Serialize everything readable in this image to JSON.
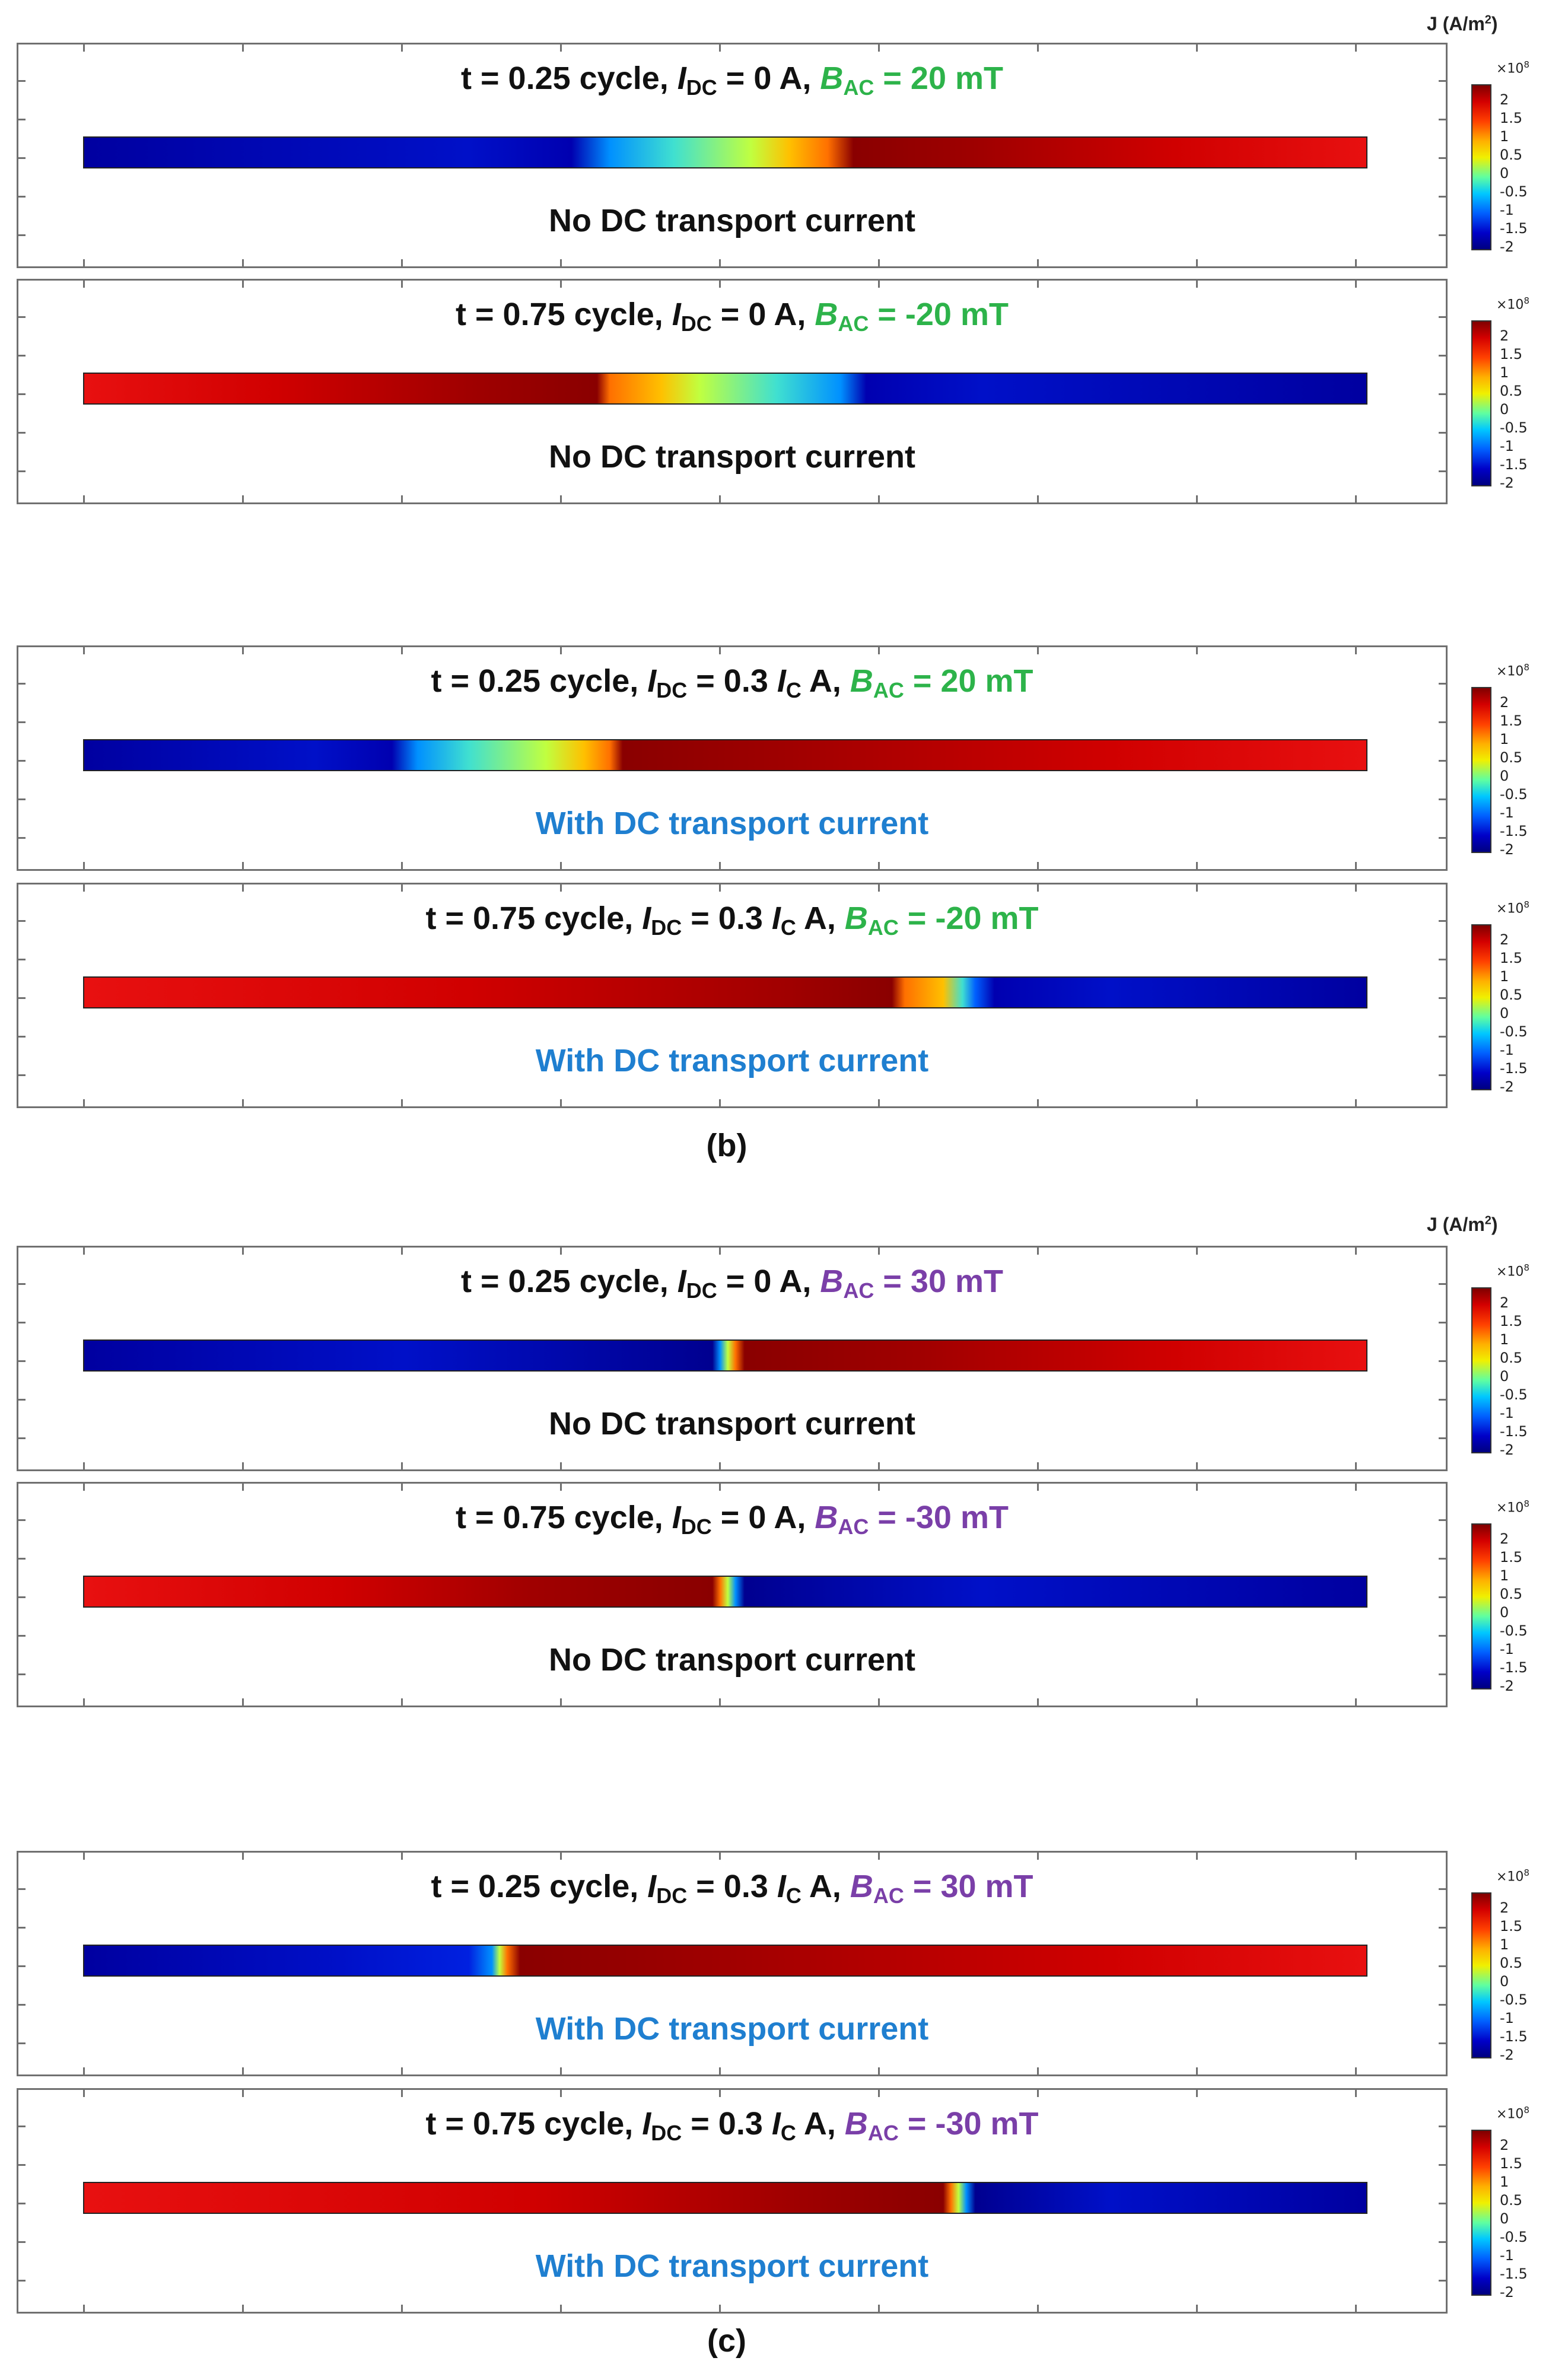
{
  "unit_label": {
    "prefix": "J (A/m",
    "sup": "2",
    "suffix": ")"
  },
  "colorbar": {
    "exponent_base": "×10",
    "exponent_power": "8",
    "ticks": [
      "2",
      "1.5",
      "1",
      "0.5",
      "0",
      "-0.5",
      "-1",
      "-1.5",
      "-2"
    ]
  },
  "colors": {
    "green_label": "#2db34a",
    "purple_label": "#7a3fa8",
    "with_dc_note": "#1f7fd0",
    "no_dc_note": "#111111"
  },
  "figure_labels": {
    "b": "(b)",
    "c": "(c)"
  },
  "panels": [
    {
      "id": "p1",
      "t_text": "t = 0.25 cycle, ",
      "idc_sym": "I",
      "idc_sub": "DC",
      "idc_val": " = 0 A, ",
      "ic_sym": "",
      "ic_sub": "",
      "ic_tail": "",
      "b_sym": "B",
      "b_sub": "AC",
      "b_val": " = 20 mT",
      "b_color": "green",
      "note": "No DC transport current",
      "note_style": "no_dc",
      "gradient": [
        "#0000a0 0%",
        "#0010c8 30%",
        "#0000b0 38%",
        "#0090ff 41%",
        "#40e0d0 46%",
        "#c0ff40 52%",
        "#ffc000 55%",
        "#ff7000 58%",
        "#8a0000 60%",
        "#a00000 70%",
        "#d00000 85%",
        "#e81010 100%"
      ]
    },
    {
      "id": "p2",
      "t_text": "t = 0.75 cycle, ",
      "idc_sym": "I",
      "idc_sub": "DC",
      "idc_val": " = 0 A, ",
      "ic_sym": "",
      "ic_sub": "",
      "ic_tail": "",
      "b_sym": "B",
      "b_sub": "AC",
      "b_val": " = -20 mT",
      "b_color": "green",
      "note": "No DC transport current",
      "note_style": "no_dc",
      "gradient": [
        "#e81010 0%",
        "#d00000 15%",
        "#a00000 30%",
        "#8a0000 40%",
        "#ff7000 41%",
        "#ffc000 45%",
        "#c0ff40 48%",
        "#40e0d0 54%",
        "#0090ff 59%",
        "#0000b0 61%",
        "#0010c8 70%",
        "#0000a0 100%"
      ]
    },
    {
      "id": "p3",
      "t_text": "t = 0.25 cycle, ",
      "idc_sym": "I",
      "idc_sub": "DC",
      "idc_val": " = 0.3 ",
      "ic_sym": "I",
      "ic_sub": "C",
      "ic_tail": " A, ",
      "b_sym": "B",
      "b_sub": "AC",
      "b_val": " = 20 mT",
      "b_color": "green",
      "note": "With DC transport current",
      "note_style": "with_dc",
      "gradient": [
        "#0000a0 0%",
        "#0010c8 18%",
        "#0000b0 24%",
        "#0090ff 26%",
        "#40e0d0 30%",
        "#c0ff40 36%",
        "#ffc000 39%",
        "#ff7000 41%",
        "#8a0000 42%",
        "#a00000 55%",
        "#d00000 80%",
        "#e81010 100%"
      ]
    },
    {
      "id": "p4",
      "t_text": "t = 0.75 cycle, ",
      "idc_sym": "I",
      "idc_sub": "DC",
      "idc_val": " = 0.3 ",
      "ic_sym": "I",
      "ic_sub": "C",
      "ic_tail": " A, ",
      "b_sym": "B",
      "b_sub": "AC",
      "b_val": " = -20 mT",
      "b_color": "green",
      "note": "With DC transport current",
      "note_style": "with_dc",
      "gradient": [
        "#e81010 0%",
        "#d00000 30%",
        "#a00000 55%",
        "#8a0000 63%",
        "#ff7000 64%",
        "#ffc000 67%",
        "#40e0d0 68.5%",
        "#0060ff 69.5%",
        "#0000b0 71%",
        "#0010c8 80%",
        "#0000a0 100%"
      ]
    },
    {
      "id": "p5",
      "t_text": "t = 0.25 cycle, ",
      "idc_sym": "I",
      "idc_sub": "DC",
      "idc_val": " = 0 A, ",
      "ic_sym": "",
      "ic_sub": "",
      "ic_tail": "",
      "b_sym": "B",
      "b_sub": "AC",
      "b_val": " = 30 mT",
      "b_color": "purple",
      "note": "No DC transport current",
      "note_style": "no_dc",
      "gradient": [
        "#0000a0 0%",
        "#0010c8 25%",
        "#000090 49%",
        "#0090ff 49.6%",
        "#c0ff40 50.2%",
        "#ff7000 50.8%",
        "#8a0000 51.5%",
        "#a00000 65%",
        "#d00000 85%",
        "#e81010 100%"
      ]
    },
    {
      "id": "p6",
      "t_text": "t = 0.75 cycle, ",
      "idc_sym": "I",
      "idc_sub": "DC",
      "idc_val": " = 0 A, ",
      "ic_sym": "",
      "ic_sub": "",
      "ic_tail": "",
      "b_sym": "B",
      "b_sub": "AC",
      "b_val": " = -30 mT",
      "b_color": "purple",
      "note": "No DC transport current",
      "note_style": "no_dc",
      "gradient": [
        "#e81010 0%",
        "#d00000 20%",
        "#a00000 35%",
        "#8a0000 49%",
        "#ff7000 49.6%",
        "#c0ff40 50.2%",
        "#0090ff 50.8%",
        "#000090 51.5%",
        "#0010c8 70%",
        "#0000a0 100%"
      ]
    },
    {
      "id": "p7",
      "t_text": "t = 0.25 cycle, ",
      "idc_sym": "I",
      "idc_sub": "DC",
      "idc_val": " = 0.3 ",
      "ic_sym": "I",
      "ic_sub": "C",
      "ic_tail": " A, ",
      "b_sym": "B",
      "b_sub": "AC",
      "b_val": " = 30 mT",
      "b_color": "purple",
      "note": "With DC transport current",
      "note_style": "with_dc",
      "gradient": [
        "#0000a0 0%",
        "#0010c8 20%",
        "#0020e0 30%",
        "#0090ff 31.8%",
        "#c0ff40 32.4%",
        "#ff7000 33%",
        "#8a0000 34%",
        "#a00000 50%",
        "#d00000 80%",
        "#e81010 100%"
      ]
    },
    {
      "id": "p8",
      "t_text": "t = 0.75 cycle, ",
      "idc_sym": "I",
      "idc_sub": "DC",
      "idc_val": " = 0.3 ",
      "ic_sym": "I",
      "ic_sub": "C",
      "ic_tail": " A, ",
      "b_sym": "B",
      "b_sub": "AC",
      "b_val": " = -30 mT",
      "b_color": "purple",
      "note": "With DC transport current",
      "note_style": "with_dc",
      "gradient": [
        "#e81010 0%",
        "#d00000 35%",
        "#a00000 55%",
        "#8a0000 67%",
        "#ff7000 67.6%",
        "#c0ff40 68.2%",
        "#0090ff 68.8%",
        "#000090 69.5%",
        "#0010c8 80%",
        "#0000a0 100%"
      ]
    }
  ]
}
